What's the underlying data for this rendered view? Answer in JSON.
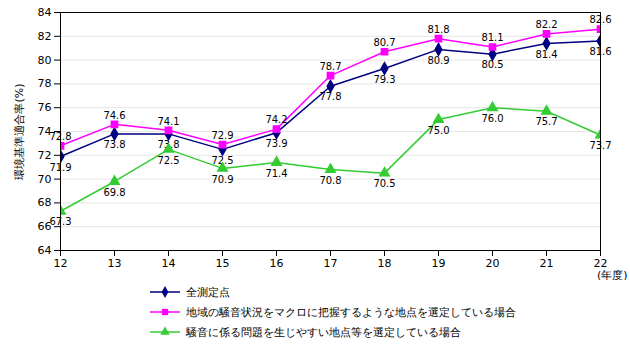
{
  "chart_data": {
    "type": "line",
    "x": [
      12,
      13,
      14,
      15,
      16,
      17,
      18,
      19,
      20,
      21,
      22
    ],
    "xlim": [
      12,
      22
    ],
    "xticks": [
      12,
      13,
      14,
      15,
      16,
      17,
      18,
      19,
      20,
      21,
      22
    ],
    "x_label": "(年度)",
    "y_label": "環境基準適合率(%)",
    "ylim": [
      64,
      84
    ],
    "yticks": [
      64,
      66,
      68,
      70,
      72,
      74,
      76,
      78,
      80,
      82,
      84
    ],
    "grid": true,
    "legend": "bottom",
    "data_labels": true,
    "series": [
      {
        "name": "全測定点",
        "color": "#000080",
        "marker": "diamond",
        "values": [
          71.9,
          73.8,
          73.8,
          72.5,
          73.9,
          77.8,
          79.3,
          80.9,
          80.5,
          81.4,
          81.6
        ],
        "value_labels": [
          "71.9",
          "73.8",
          "73.8",
          "72.5",
          "73.9",
          "77.8",
          "79.3",
          "80.9",
          "80.5",
          "81.4",
          "81.6"
        ]
      },
      {
        "name": "地域の騒音状況をマクロに把握するような地点を選定している場合",
        "color": "#ff00ff",
        "marker": "square",
        "values": [
          72.8,
          74.6,
          74.1,
          72.9,
          74.2,
          78.7,
          80.7,
          81.8,
          81.1,
          82.2,
          82.6
        ],
        "value_labels": [
          "72.8",
          "74.6",
          "74.1",
          "72.9",
          "74.2",
          "78.7",
          "80.7",
          "81.8",
          "81.1",
          "82.2",
          "82.6"
        ]
      },
      {
        "name": "騒音に係る問題を生じやすい地点等を選定している場合",
        "color": "#33cc33",
        "marker": "triangle",
        "values": [
          67.3,
          69.8,
          72.5,
          70.9,
          71.4,
          70.8,
          70.5,
          75.0,
          76.0,
          75.7,
          73.7
        ],
        "value_labels": [
          "67.3",
          "69.8",
          "72.5",
          "70.9",
          "71.4",
          "70.8",
          "70.5",
          "75.0",
          "76.0",
          "75.7",
          "73.7"
        ]
      }
    ]
  }
}
